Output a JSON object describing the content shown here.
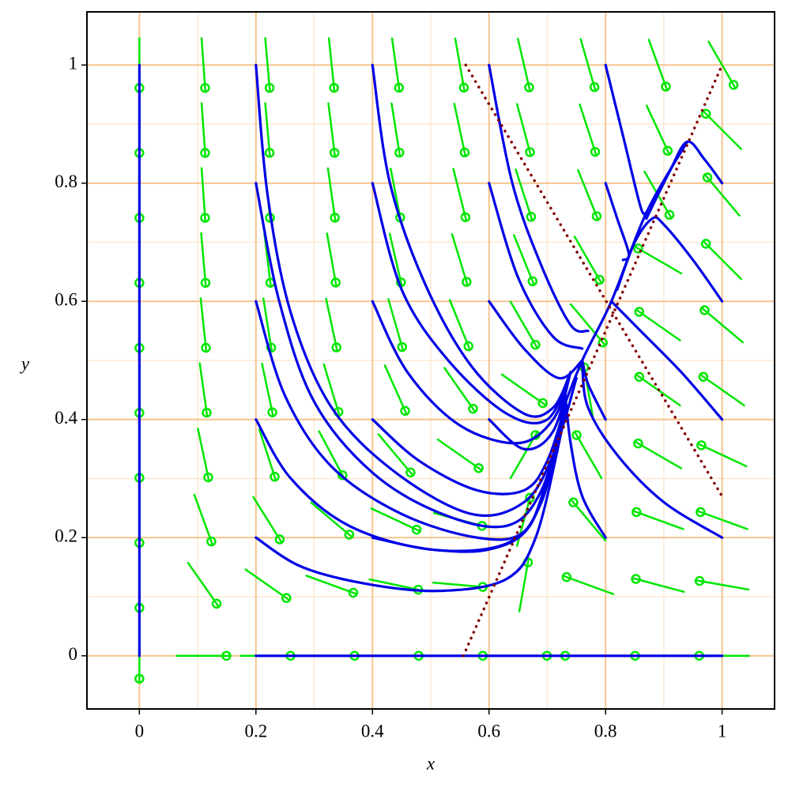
{
  "chart_data": {
    "type": "phase",
    "xlabel": "x",
    "ylabel": "y",
    "xlim": [
      -0.09,
      1.09
    ],
    "ylim": [
      -0.09,
      1.09
    ],
    "xticks": [
      0,
      0.2,
      0.4,
      0.6,
      0.8,
      1
    ],
    "yticks": [
      0,
      0.2,
      0.4,
      0.6,
      0.8,
      1
    ],
    "minor_xticks": [
      0.1,
      0.3,
      0.5,
      0.7,
      0.9
    ],
    "minor_yticks": [
      0.1,
      0.3,
      0.5,
      0.7,
      0.9
    ],
    "grid": true,
    "grid_color": "#f6c48e",
    "minor_grid_color": "#fde8d4",
    "trajectories": {
      "color": "#0000e6",
      "series": [
        {
          "x": [
            0,
            0
          ],
          "y": [
            0,
            1
          ]
        },
        {
          "x": [
            0.2,
            1
          ],
          "y": [
            0,
            0
          ]
        },
        {
          "x": [
            0.2,
            0.22,
            0.26,
            0.33,
            0.44,
            0.57,
            0.66,
            0.71,
            0.75
          ],
          "y": [
            1,
            0.78,
            0.58,
            0.42,
            0.31,
            0.24,
            0.26,
            0.34,
            0.47
          ]
        },
        {
          "x": [
            0.2,
            0.24,
            0.3,
            0.4,
            0.52,
            0.63,
            0.69,
            0.73
          ],
          "y": [
            0.8,
            0.6,
            0.43,
            0.31,
            0.24,
            0.22,
            0.28,
            0.42
          ]
        },
        {
          "x": [
            0.2,
            0.25,
            0.33,
            0.45,
            0.58,
            0.66,
            0.7,
            0.73
          ],
          "y": [
            0.6,
            0.44,
            0.32,
            0.24,
            0.2,
            0.21,
            0.3,
            0.42
          ]
        },
        {
          "x": [
            0.2,
            0.26,
            0.36,
            0.5,
            0.63,
            0.69,
            0.73
          ],
          "y": [
            0.4,
            0.3,
            0.22,
            0.18,
            0.19,
            0.26,
            0.42
          ]
        },
        {
          "x": [
            0.2,
            0.28,
            0.4,
            0.52,
            0.63,
            0.68,
            0.72,
            0.73
          ],
          "y": [
            0.2,
            0.15,
            0.12,
            0.11,
            0.13,
            0.2,
            0.36,
            0.42
          ]
        },
        {
          "x": [
            0.4,
            0.43,
            0.49,
            0.57,
            0.66,
            0.71,
            0.74
          ],
          "y": [
            1,
            0.8,
            0.63,
            0.49,
            0.41,
            0.42,
            0.48
          ]
        },
        {
          "x": [
            0.4,
            0.45,
            0.53,
            0.63,
            0.7,
            0.74
          ],
          "y": [
            0.8,
            0.62,
            0.5,
            0.41,
            0.4,
            0.48
          ]
        },
        {
          "x": [
            0.4,
            0.46,
            0.55,
            0.65,
            0.71,
            0.74
          ],
          "y": [
            0.6,
            0.48,
            0.39,
            0.36,
            0.4,
            0.48
          ]
        },
        {
          "x": [
            0.4,
            0.48,
            0.58,
            0.66,
            0.7,
            0.73
          ],
          "y": [
            0.4,
            0.33,
            0.28,
            0.28,
            0.33,
            0.42
          ]
        },
        {
          "x": [
            0.4,
            0.5,
            0.6,
            0.67,
            0.71,
            0.73
          ],
          "y": [
            0.2,
            0.18,
            0.18,
            0.22,
            0.34,
            0.42
          ]
        },
        {
          "x": [
            0.6,
            0.64,
            0.69,
            0.74,
            0.77
          ],
          "y": [
            1,
            0.8,
            0.66,
            0.56,
            0.55
          ]
        },
        {
          "x": [
            0.6,
            0.65,
            0.71,
            0.76
          ],
          "y": [
            0.8,
            0.64,
            0.54,
            0.52
          ]
        },
        {
          "x": [
            0.6,
            0.66,
            0.72,
            0.76
          ],
          "y": [
            0.6,
            0.52,
            0.47,
            0.5
          ]
        },
        {
          "x": [
            0.6,
            0.66,
            0.71,
            0.74
          ],
          "y": [
            0.4,
            0.35,
            0.38,
            0.48
          ]
        },
        {
          "x": [
            0.8,
            0.83,
            0.86,
            0.87
          ],
          "y": [
            1,
            0.88,
            0.76,
            0.75
          ]
        },
        {
          "x": [
            0.8,
            0.82,
            0.84,
            0.83
          ],
          "y": [
            0.8,
            0.74,
            0.68,
            0.67
          ]
        },
        {
          "x": [
            0.8,
            0.77,
            0.76
          ],
          "y": [
            0.4,
            0.46,
            0.5
          ]
        },
        {
          "x": [
            0.8,
            0.76,
            0.74,
            0.73
          ],
          "y": [
            0.2,
            0.27,
            0.36,
            0.45
          ]
        },
        {
          "x": [
            1,
            0.97,
            0.94,
            0.91,
            0.87
          ],
          "y": [
            0.8,
            0.84,
            0.87,
            0.82,
            0.74
          ]
        },
        {
          "x": [
            1,
            0.95,
            0.9,
            0.88,
            0.85,
            0.82
          ],
          "y": [
            0.6,
            0.67,
            0.73,
            0.74,
            0.7,
            0.62
          ]
        },
        {
          "x": [
            1,
            0.93,
            0.86,
            0.81
          ],
          "y": [
            0.4,
            0.48,
            0.55,
            0.6
          ]
        },
        {
          "x": [
            1,
            0.9,
            0.82,
            0.77,
            0.76
          ],
          "y": [
            0.2,
            0.26,
            0.34,
            0.42,
            0.49
          ]
        },
        {
          "x": [
            0.72,
            0.76,
            0.81,
            0.87,
            0.94
          ],
          "y": [
            0.4,
            0.5,
            0.6,
            0.75,
            0.87
          ]
        }
      ]
    },
    "nullclines": {
      "color": "#800000",
      "series": [
        {
          "x": [
            0.556,
            1
          ],
          "y": [
            0,
            1
          ]
        },
        {
          "x": [
            0.56,
            1
          ],
          "y": [
            1,
            0.27
          ]
        }
      ]
    },
    "field": {
      "color": "#00e600",
      "x": [
        0,
        0.11,
        0.22,
        0.33,
        0.44,
        0.55,
        0.66,
        0.77,
        0.89,
        1
      ],
      "y": [
        1,
        0.89,
        0.78,
        0.67,
        0.56,
        0.45,
        0.34,
        0.23,
        0.12,
        0
      ],
      "angle": [
        [
          -90,
          -86,
          -85,
          -84,
          -82,
          -80,
          -77,
          -74,
          -70,
          -60
        ],
        [
          -90,
          -86,
          -85,
          -83,
          -81,
          -78,
          -75,
          -72,
          -65,
          135
        ],
        [
          -90,
          -86,
          -84,
          -82,
          -79,
          -76,
          -72,
          -68,
          -60,
          130
        ],
        [
          -90,
          -85,
          -83,
          -80,
          -77,
          -73,
          -68,
          -60,
          150,
          135
        ],
        [
          -90,
          -84,
          -81,
          -78,
          -74,
          -68,
          -60,
          -50,
          145,
          140
        ],
        [
          -90,
          -82,
          -78,
          -73,
          -66,
          -55,
          -35,
          100,
          145,
          145
        ],
        [
          -90,
          -78,
          -72,
          -62,
          -50,
          -35,
          60,
          120,
          150,
          155
        ],
        [
          -90,
          -70,
          -58,
          -40,
          -25,
          -15,
          75,
          130,
          160,
          160
        ],
        [
          -90,
          -55,
          -35,
          -20,
          -12,
          -5,
          80,
          160,
          165,
          170
        ],
        [
          -90,
          0,
          0,
          0,
          0,
          0,
          0,
          180,
          180,
          180
        ]
      ]
    }
  }
}
